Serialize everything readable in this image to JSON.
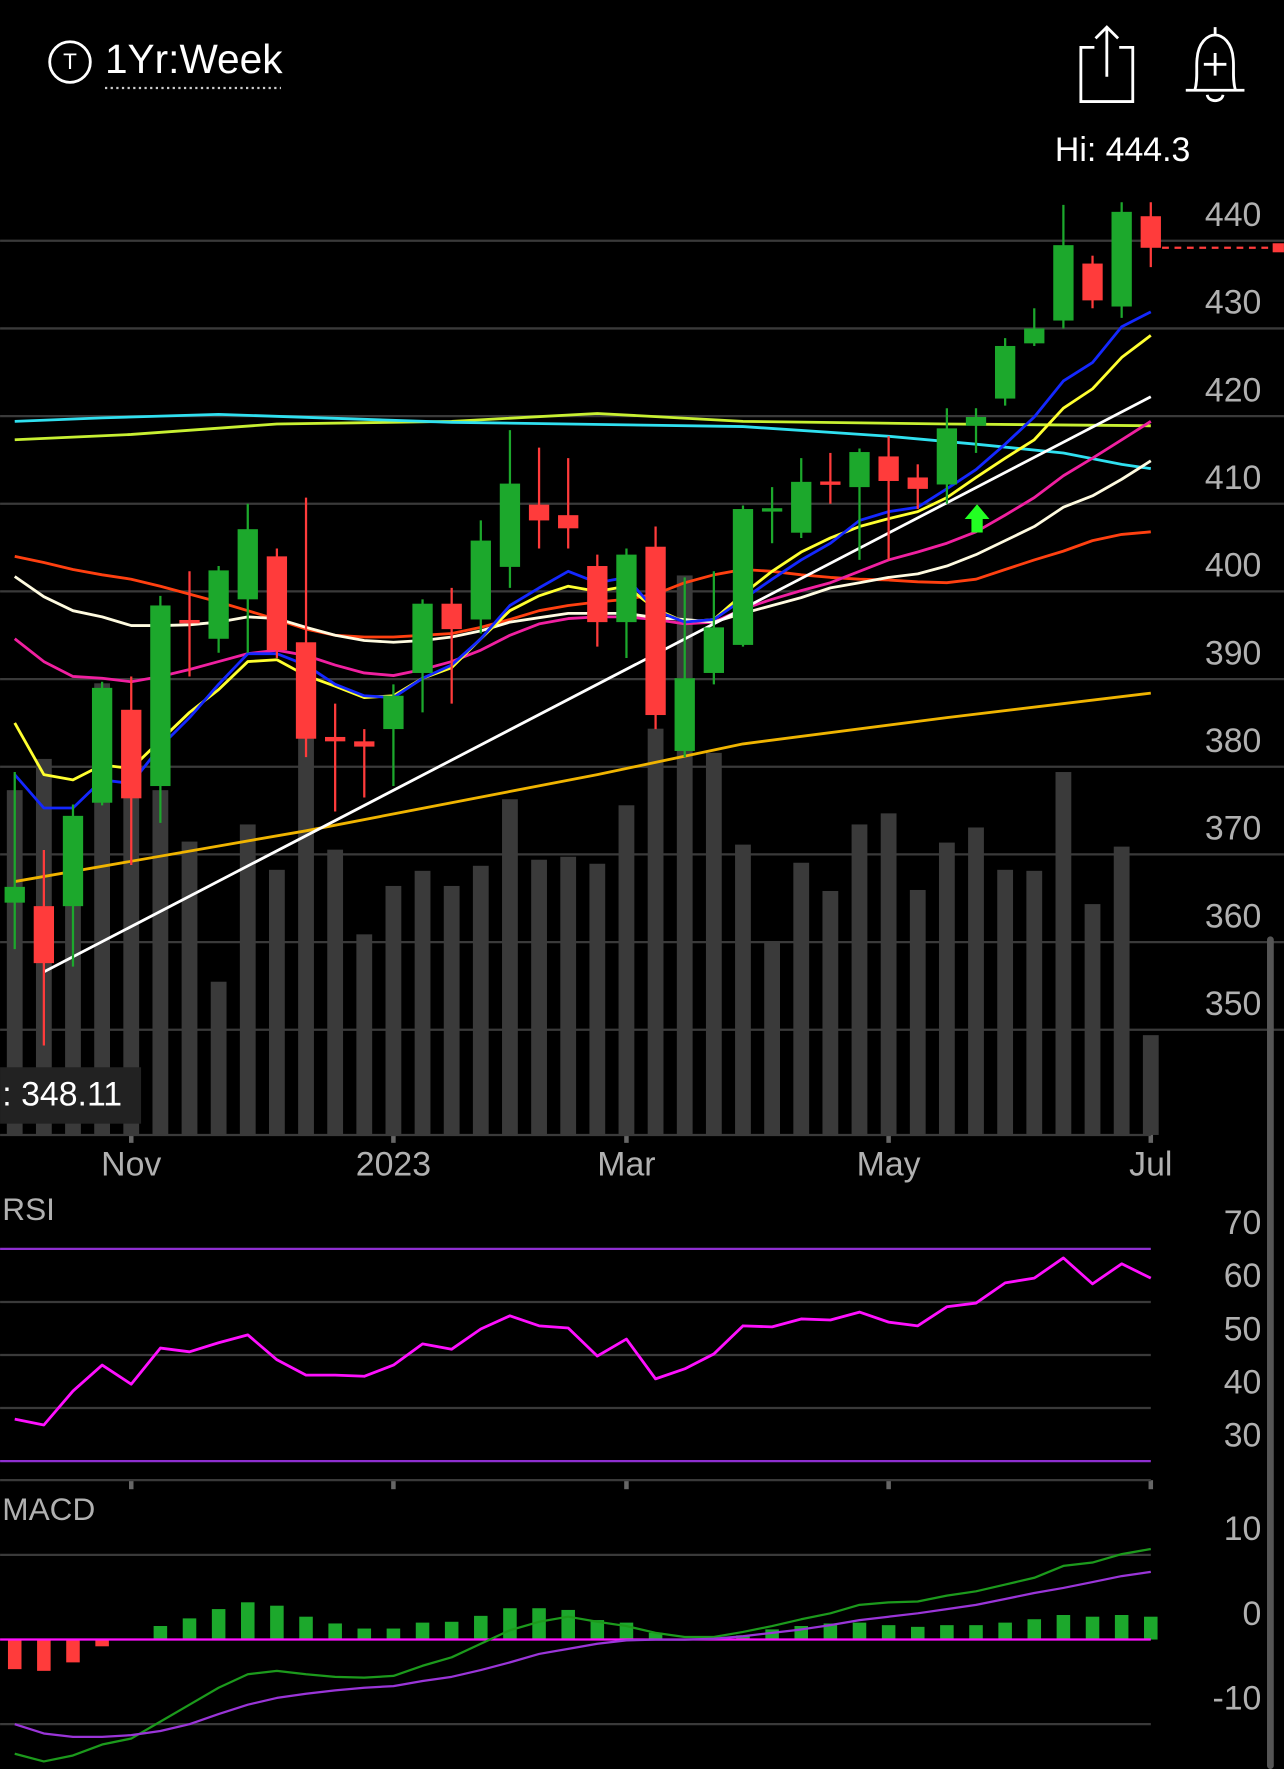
{
  "header": {
    "icon": "T",
    "title": "1Yr:Week"
  },
  "chart_data": [
    {
      "type": "candlestick",
      "hi_label": "Hi: 444.3",
      "lo_label": ": 348.11",
      "categories": [
        null,
        null,
        null,
        null,
        "Nov",
        null,
        null,
        null,
        null,
        null,
        null,
        null,
        null,
        "2023",
        null,
        null,
        null,
        null,
        null,
        null,
        null,
        "Mar",
        null,
        null,
        null,
        null,
        null,
        null,
        null,
        null,
        "May",
        null,
        null,
        null,
        null,
        null,
        null,
        null,
        null,
        "Jul"
      ],
      "open": [
        364.5,
        364.1,
        364.1,
        375.9,
        386.5,
        377.8,
        396.7,
        394.6,
        399.1,
        404.0,
        394.2,
        383.4,
        382.9,
        384.3,
        390.7,
        398.6,
        396.8,
        402.8,
        409.9,
        408.7,
        402.9,
        396.5,
        405.1,
        381.8,
        390.7,
        393.9,
        409.2,
        406.7,
        412.5,
        411.9,
        415.4,
        413.0,
        412.2,
        418.9,
        422.0,
        428.3,
        430.9,
        437.4,
        432.5,
        442.8
      ],
      "high": [
        379.4,
        370.5,
        375.7,
        389.7,
        390.3,
        399.5,
        402.3,
        402.9,
        410.0,
        404.9,
        410.7,
        387.2,
        384.3,
        389.4,
        399.1,
        400.4,
        408.1,
        418.4,
        416.4,
        415.2,
        404.2,
        404.9,
        407.4,
        401.6,
        402.3,
        409.8,
        411.9,
        415.2,
        415.8,
        416.3,
        417.7,
        414.5,
        420.9,
        420.9,
        428.9,
        432.3,
        444.1,
        438.3,
        444.4,
        444.4
      ],
      "low": [
        359.2,
        348.2,
        357.2,
        375.6,
        368.8,
        373.6,
        390.3,
        393.0,
        393.0,
        392.4,
        381.1,
        374.9,
        376.5,
        377.8,
        386.2,
        387.2,
        395.2,
        400.4,
        404.9,
        404.9,
        393.7,
        392.4,
        384.3,
        381.1,
        389.4,
        393.7,
        405.5,
        406.1,
        410.0,
        403.6,
        403.6,
        409.4,
        410.0,
        415.8,
        421.2,
        428.0,
        430.0,
        432.3,
        431.2,
        437.0
      ],
      "close": [
        366.3,
        357.6,
        374.4,
        389.0,
        376.4,
        398.4,
        396.4,
        402.4,
        407.1,
        393.3,
        383.2,
        382.9,
        382.3,
        388.1,
        398.6,
        395.7,
        405.8,
        412.3,
        408.1,
        407.2,
        396.5,
        404.2,
        385.9,
        390.1,
        395.9,
        409.4,
        409.4,
        412.5,
        412.2,
        415.9,
        412.6,
        411.7,
        418.6,
        419.9,
        428.0,
        430.0,
        439.5,
        433.2,
        443.3,
        439.2
      ],
      "up_color": "#1ca82c",
      "down_color": "#ff3b3b",
      "volume": {
        "color": "#3a3a3a",
        "vlim": [
          0,
          100
        ],
        "values": [
          34.2,
          37.3,
          30.2,
          44.8,
          35.3,
          34.2,
          29.1,
          15.2,
          30.8,
          26.3,
          39.7,
          28.3,
          19.9,
          24.7,
          26.2,
          24.7,
          26.7,
          33.3,
          27.3,
          27.6,
          26.9,
          32.7,
          40.3,
          55.5,
          37.9,
          28.8,
          19.1,
          27.0,
          24.2,
          30.8,
          31.9,
          24.3,
          29.0,
          30.5,
          26.3,
          26.2,
          36.0,
          22.9,
          28.6,
          9.9
        ]
      },
      "series": [
        {
          "color": "#c8f032",
          "x": [
            0,
            4,
            9,
            15,
            20,
            25,
            32,
            39
          ],
          "values": [
            417.3,
            417.9,
            419.1,
            419.4,
            420.3,
            419.4,
            419.1,
            418.9
          ]
        },
        {
          "color": "#30e0f0",
          "x": [
            0,
            3,
            7,
            15,
            25,
            30,
            33,
            36,
            38,
            39
          ],
          "values": [
            419.4,
            419.8,
            420.2,
            419.3,
            418.8,
            417.7,
            416.8,
            415.8,
            414.5,
            414.0
          ]
        },
        {
          "color": "#f0b400",
          "x": [
            0,
            10,
            20,
            25,
            32,
            39
          ],
          "values": [
            366.9,
            372.7,
            379.1,
            382.6,
            385.6,
            388.4
          ]
        },
        {
          "color": "#ff4010",
          "values": [
            404.0,
            403.3,
            402.5,
            401.9,
            401.4,
            400.6,
            399.7,
            398.8,
            397.8,
            396.8,
            395.7,
            395.0,
            394.8,
            394.8,
            395.0,
            395.2,
            395.9,
            396.8,
            397.8,
            398.4,
            398.8,
            399.1,
            399.7,
            401.0,
            401.9,
            402.5,
            402.3,
            401.9,
            401.6,
            401.4,
            401.3,
            401.1,
            401.0,
            401.4,
            402.5,
            403.6,
            404.6,
            405.8,
            406.5,
            406.8
          ]
        },
        {
          "color": "#f020a0",
          "values": [
            394.6,
            392.0,
            390.3,
            390.1,
            389.7,
            390.3,
            391.1,
            392.0,
            392.9,
            393.3,
            392.7,
            391.6,
            390.7,
            390.4,
            391.1,
            392.0,
            393.3,
            395.0,
            396.3,
            396.9,
            397.1,
            397.1,
            396.8,
            396.3,
            396.5,
            398.0,
            399.1,
            400.1,
            401.0,
            402.3,
            403.6,
            404.5,
            405.5,
            406.8,
            408.7,
            410.7,
            413.2,
            415.2,
            417.3,
            419.4
          ]
        },
        {
          "color": "#fffbe0",
          "values": [
            401.7,
            399.4,
            397.8,
            397.1,
            396.1,
            396.1,
            396.2,
            396.5,
            397.1,
            396.9,
            395.9,
            395.0,
            394.4,
            394.2,
            394.4,
            394.8,
            395.5,
            396.5,
            397.0,
            397.5,
            397.5,
            397.5,
            397.0,
            396.8,
            396.5,
            397.5,
            398.4,
            399.3,
            400.4,
            401.0,
            401.6,
            402.0,
            402.9,
            404.2,
            405.8,
            407.4,
            409.6,
            410.9,
            412.8,
            414.9
          ]
        },
        {
          "color": "#ffff30",
          "values": [
            385.0,
            379.1,
            378.5,
            380.2,
            379.8,
            383.0,
            386.2,
            388.8,
            392.0,
            392.2,
            390.4,
            389.2,
            387.9,
            388.1,
            390.1,
            391.3,
            394.6,
            397.8,
            399.5,
            400.6,
            400.0,
            400.6,
            398.0,
            396.5,
            396.8,
            399.7,
            402.3,
            404.5,
            406.1,
            407.4,
            408.3,
            409.1,
            410.7,
            413.0,
            415.2,
            417.3,
            420.9,
            423.1,
            426.7,
            429.2
          ]
        },
        {
          "color": "#1428ff",
          "values": [
            379.1,
            375.3,
            375.3,
            378.5,
            378.1,
            382.3,
            385.6,
            389.4,
            392.9,
            392.9,
            391.6,
            389.4,
            388.1,
            387.9,
            390.1,
            391.6,
            394.6,
            398.4,
            400.4,
            402.3,
            401.0,
            401.6,
            397.8,
            396.5,
            396.8,
            399.1,
            401.4,
            403.6,
            405.5,
            408.1,
            409.1,
            409.6,
            411.7,
            413.9,
            416.8,
            419.9,
            424.0,
            426.1,
            430.2,
            431.9
          ]
        },
        {
          "color": "#ffffff",
          "x": [
            1,
            39
          ],
          "values": [
            356.6,
            422.2
          ]
        }
      ],
      "ylim": [
        338,
        453
      ],
      "yticks": [
        350,
        360,
        370,
        380,
        390,
        400,
        410,
        420,
        430,
        440
      ],
      "grid": true
    },
    {
      "type": "line",
      "title": "RSI",
      "series": [
        {
          "color": "#ff10ff",
          "values": [
            37.9,
            36.8,
            43.2,
            48.1,
            44.5,
            51.3,
            50.6,
            52.3,
            53.8,
            49.1,
            46.2,
            46.2,
            46.0,
            48.1,
            52.1,
            51.1,
            54.9,
            57.4,
            55.5,
            55.1,
            49.8,
            53.0,
            45.5,
            47.4,
            50.2,
            55.5,
            55.3,
            56.8,
            56.6,
            58.1,
            56.2,
            55.5,
            59.1,
            59.8,
            63.6,
            64.5,
            68.3,
            63.4,
            67.2,
            64.5
          ]
        }
      ],
      "ylim": [
        26.4,
        80
      ],
      "yticks": [
        30,
        40,
        50,
        60,
        70
      ],
      "grid": true,
      "level_color": "#8e2fd0"
    },
    {
      "type": "macd",
      "title": "MACD",
      "histogram": {
        "up_color": "#1ca82c",
        "down_color": "#ff3b3b",
        "values": [
          -3.5,
          -3.7,
          -2.7,
          -0.8,
          -0.1,
          1.6,
          2.5,
          3.6,
          4.4,
          4.0,
          2.7,
          1.9,
          1.3,
          1.3,
          2.0,
          2.1,
          2.8,
          3.7,
          3.7,
          3.5,
          2.3,
          2.0,
          0.8,
          0.1,
          0.1,
          0.5,
          1.2,
          1.6,
          1.9,
          2.0,
          1.7,
          1.5,
          1.7,
          1.7,
          2.0,
          2.4,
          2.9,
          2.7,
          2.9,
          2.7
        ]
      },
      "series": [
        {
          "color": "#1c9a1c",
          "values": [
            -13.5,
            -14.4,
            -13.7,
            -12.4,
            -11.7,
            -9.7,
            -7.7,
            -5.7,
            -4.1,
            -3.7,
            -4.1,
            -4.4,
            -4.5,
            -4.3,
            -3.1,
            -2.1,
            -0.5,
            1.1,
            2.1,
            2.7,
            2.1,
            1.6,
            0.8,
            0.3,
            0.3,
            0.9,
            1.6,
            2.4,
            3.1,
            4.1,
            4.4,
            4.5,
            5.2,
            5.7,
            6.5,
            7.3,
            8.7,
            9.1,
            10.1,
            10.7
          ]
        },
        {
          "color": "#9a35d8",
          "values": [
            -10.0,
            -11.1,
            -11.5,
            -11.5,
            -11.3,
            -10.8,
            -10.0,
            -8.8,
            -7.7,
            -6.9,
            -6.4,
            -6.0,
            -5.7,
            -5.5,
            -4.9,
            -4.4,
            -3.6,
            -2.7,
            -1.7,
            -1.1,
            -0.5,
            -0.1,
            0.0,
            0.0,
            0.1,
            0.4,
            0.8,
            1.2,
            1.7,
            2.3,
            2.7,
            3.1,
            3.6,
            4.1,
            4.8,
            5.5,
            6.1,
            6.8,
            7.5,
            8.0
          ]
        }
      ],
      "ylim": [
        -15.3,
        17.7
      ],
      "yticks": [
        -10,
        0,
        10
      ],
      "grid": true,
      "zero_color": "#ff10ff"
    }
  ]
}
